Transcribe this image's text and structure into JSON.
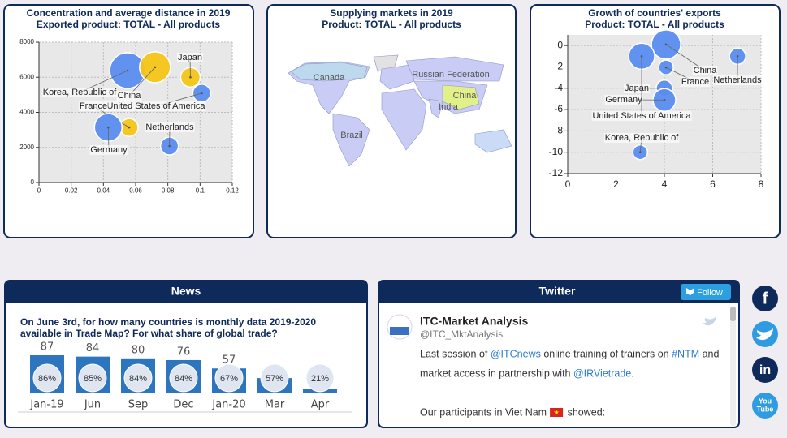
{
  "chart_data": [
    {
      "type": "bubble",
      "title": "Concentration and average distance in 2019",
      "subtitle": "Exported product: TOTAL - All products",
      "labels": [
        "Korea, Republic of",
        "China",
        "Japan",
        "United States of America",
        "France",
        "Germany",
        "Netherlands"
      ],
      "x": [
        0.055,
        0.072,
        0.094,
        0.101,
        0.056,
        0.043,
        0.081
      ],
      "values": [
        6380,
        6570,
        6000,
        5090,
        3140,
        3140,
        2080
      ],
      "sizes": [
        22,
        19,
        12,
        11,
        11,
        17,
        11
      ],
      "colors": [
        "#5b8def",
        "#f5c518",
        "#f5c518",
        "#5b8def",
        "#f5c518",
        "#5b8def",
        "#5b8def"
      ],
      "xlim": [
        0,
        0.12
      ],
      "xticks": [
        0,
        0.02,
        0.04,
        0.06,
        0.08,
        0.1,
        0.12
      ],
      "ylim": [
        0,
        8000
      ],
      "yticks": [
        0,
        2000,
        4000,
        6000,
        8000
      ],
      "grid": true
    },
    {
      "type": "map",
      "title": "Supplying markets in 2019",
      "subtitle": "Product: TOTAL - All products",
      "labels": [
        "Canada",
        "Russian Federation",
        "China",
        "India",
        "Brazil"
      ]
    },
    {
      "type": "bubble",
      "title": "Growth of countries' exports",
      "subtitle": "Product: TOTAL - All products",
      "labels": [
        "China",
        "Netherlands",
        "France",
        "Japan",
        "Germany",
        "United States of America",
        "Korea, Republic of"
      ],
      "x": [
        4.07,
        7.03,
        4.07,
        4.0,
        4.0,
        3.06,
        3.0
      ],
      "values": [
        0.1,
        -1.0,
        -2.05,
        -4.0,
        -5.1,
        -1.0,
        -10.0
      ],
      "sizes": [
        18,
        10,
        9,
        10,
        14,
        16,
        9
      ],
      "colors": [
        "#5b8def",
        "#5b8def",
        "#5b8def",
        "#5b8def",
        "#5b8def",
        "#5b8def",
        "#5b8def"
      ],
      "xlim": [
        0,
        8
      ],
      "xticks": [
        0,
        2,
        4,
        6,
        8
      ],
      "ylim": [
        -12,
        1
      ],
      "yticks": [
        0,
        -2,
        -4,
        -6,
        -8,
        -10,
        -12
      ],
      "grid": true
    },
    {
      "type": "bar",
      "categories": [
        "Jan-19",
        "Jun",
        "Sep",
        "Dec",
        "Jan-20",
        "Mar",
        "Apr"
      ],
      "values": [
        87,
        84,
        80,
        76,
        57,
        35,
        10
      ],
      "color": "#2e75c0",
      "shares": [
        86,
        85,
        84,
        84,
        67,
        57,
        21
      ],
      "share_labels": [
        "86%",
        "85%",
        "84%",
        "84%",
        "67%",
        "57%",
        "21%"
      ]
    }
  ],
  "news": {
    "title": "News",
    "question": [
      "On June 3rd, for how many countries is monthly data 2019-2020",
      "available in Trade Map? For what share of global trade?"
    ]
  },
  "twitter": {
    "title": "Twitter",
    "follow": "Follow",
    "account": "ITC-Market Analysis",
    "handle": "@ITC_MktAnalysis",
    "lines": [
      [
        {
          "text": "Last session of "
        },
        {
          "text": "@ITCnews",
          "link": true
        },
        {
          "text": " online training of trainers on "
        },
        {
          "text": "#NTM",
          "link": true
        },
        {
          "text": " and"
        }
      ],
      [
        {
          "text": "market access in partnership with "
        },
        {
          "text": "@IRVietrade",
          "link": true
        },
        {
          "text": "."
        }
      ],
      [
        {
          "text": "Our participants in Viet Nam"
        },
        {
          "text": " showed:"
        }
      ]
    ]
  },
  "social": {
    "facebook": "f",
    "linkedin": "in",
    "youtube": [
      "You",
      "Tube"
    ]
  }
}
